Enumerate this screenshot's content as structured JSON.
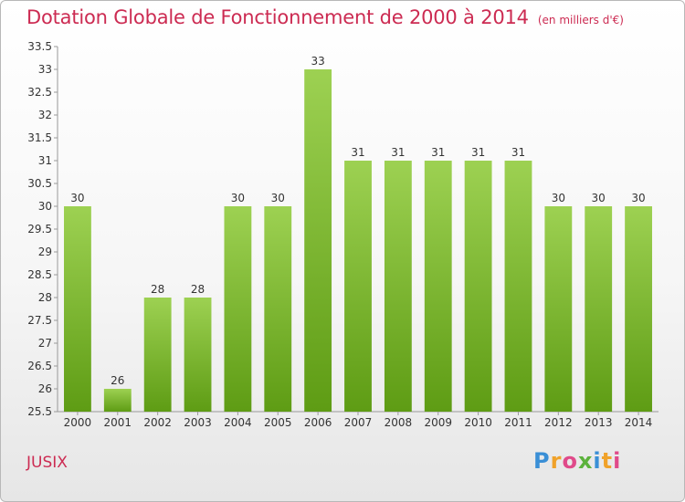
{
  "header": {
    "title": "Dotation Globale de Fonctionnement de 2000 à 2014",
    "unit": "(en milliers d'€)"
  },
  "footer": {
    "commune": "JUSIX",
    "logo": "Proxiti"
  },
  "colors": {
    "title": "#cc2b52",
    "bar_top": "#9dd152",
    "bar_bottom": "#5e9c14",
    "axis_text": "#333333"
  },
  "chart_data": {
    "type": "bar",
    "title": "Dotation Globale de Fonctionnement de 2000 à 2014",
    "subtitle": "(en milliers d'€)",
    "xlabel": "",
    "ylabel": "",
    "categories": [
      "2000",
      "2001",
      "2002",
      "2003",
      "2004",
      "2005",
      "2006",
      "2007",
      "2008",
      "2009",
      "2010",
      "2011",
      "2012",
      "2013",
      "2014"
    ],
    "values": [
      30,
      26,
      28,
      28,
      30,
      30,
      33,
      31,
      31,
      31,
      31,
      31,
      30,
      30,
      30
    ],
    "data_labels": [
      "30",
      "26",
      "28",
      "28",
      "30",
      "30",
      "33",
      "31",
      "31",
      "31",
      "31",
      "31",
      "30",
      "30",
      "30"
    ],
    "ylim": [
      25.5,
      33.5
    ],
    "yticks": [
      "25.5",
      "26",
      "26.5",
      "27",
      "27.5",
      "28",
      "28.5",
      "29",
      "29.5",
      "30",
      "30.5",
      "31",
      "31.5",
      "32",
      "32.5",
      "33",
      "33.5"
    ],
    "grid": false,
    "legend": "none"
  }
}
